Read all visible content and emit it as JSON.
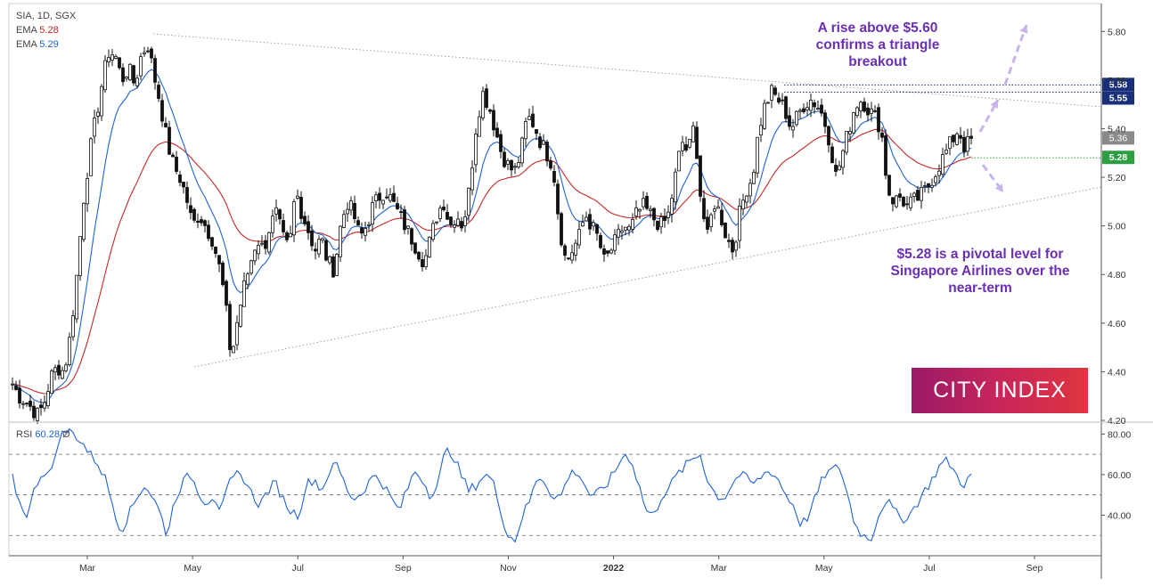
{
  "chart_data": {
    "type": "candlestick",
    "symbol_line": "SIA, 1D, SGX",
    "indicators": [
      {
        "label": "EMA",
        "value": "5.28",
        "color": "#c62828"
      },
      {
        "label": "EMA",
        "value": "5.29",
        "color": "#1e63d6"
      }
    ],
    "x_ticks": [
      "Mar",
      "May",
      "Jul",
      "Sep",
      "Nov",
      "2022",
      "Mar",
      "May",
      "Jul",
      "Sep"
    ],
    "y_ticks": [
      "5.80",
      "5.60",
      "5.40",
      "5.20",
      "5.00",
      "4.80",
      "4.60",
      "4.40",
      "4.20"
    ],
    "ylim": [
      4.2,
      5.9
    ],
    "price_path": [
      4.35,
      4.3,
      4.28,
      4.25,
      4.22,
      4.28,
      4.38,
      4.42,
      4.4,
      4.55,
      4.8,
      5.1,
      5.3,
      5.45,
      5.6,
      5.72,
      5.7,
      5.6,
      5.65,
      5.58,
      5.7,
      5.75,
      5.62,
      5.5,
      5.35,
      5.25,
      5.2,
      5.12,
      5.0,
      5.05,
      5.0,
      4.95,
      4.85,
      4.7,
      4.45,
      4.62,
      4.75,
      4.85,
      4.95,
      4.9,
      5.0,
      5.05,
      4.95,
      4.9,
      5.15,
      5.05,
      4.98,
      4.9,
      4.95,
      4.85,
      4.82,
      5.0,
      5.1,
      5.05,
      4.95,
      5.0,
      5.08,
      5.12,
      5.15,
      5.1,
      5.05,
      5.0,
      4.95,
      4.9,
      4.85,
      4.95,
      5.05,
      5.1,
      5.0,
      5.05,
      5.0,
      5.15,
      5.4,
      5.55,
      5.5,
      5.4,
      5.3,
      5.25,
      5.22,
      5.3,
      5.45,
      5.42,
      5.35,
      5.3,
      5.25,
      5.0,
      4.85,
      4.9,
      4.95,
      5.05,
      5.0,
      4.95,
      4.85,
      4.9,
      4.95,
      5.0,
      4.98,
      5.05,
      5.08,
      5.05,
      5.02,
      5.0,
      5.05,
      5.2,
      5.35,
      5.3,
      5.42,
      5.1,
      4.95,
      5.1,
      5.05,
      4.95,
      4.9,
      5.05,
      5.15,
      5.2,
      5.4,
      5.5,
      5.55,
      5.52,
      5.48,
      5.4,
      5.45,
      5.5,
      5.52,
      5.5,
      5.45,
      5.35,
      5.2,
      5.3,
      5.4,
      5.5,
      5.52,
      5.48,
      5.45,
      5.4,
      5.15,
      5.1,
      5.12,
      5.08,
      5.1,
      5.12,
      5.15,
      5.2,
      5.25,
      5.3,
      5.35,
      5.4,
      5.32,
      5.36
    ],
    "ema_slow": {
      "label": "EMA",
      "value": 5.28,
      "color": "#c62828"
    },
    "ema_fast": {
      "label": "EMA",
      "value": 5.29,
      "color": "#1e63d6"
    },
    "levels": [
      {
        "value": 5.58,
        "label": "5.58",
        "color": "#1a2f7a"
      },
      {
        "value": 5.55,
        "label": "5.55",
        "color": "#1a2f7a"
      },
      {
        "value": 5.28,
        "label": "5.28",
        "color": "#2e9e43"
      }
    ],
    "last_price": {
      "value": 5.36,
      "label": "5.36",
      "color": "#8a8a8a"
    },
    "rsi": {
      "label": "RSI",
      "value": "60.28",
      "extra": "Ø",
      "y_ticks": [
        "80.00",
        "60.00",
        "40.00"
      ],
      "levels": [
        70,
        50,
        30
      ],
      "ylim": [
        20,
        85
      ],
      "path": [
        58,
        45,
        40,
        55,
        62,
        60,
        78,
        82,
        80,
        76,
        70,
        66,
        58,
        45,
        32,
        40,
        48,
        55,
        50,
        42,
        30,
        48,
        56,
        60,
        52,
        46,
        50,
        42,
        55,
        60,
        58,
        50,
        45,
        52,
        56,
        48,
        42,
        40,
        55,
        58,
        52,
        62,
        65,
        55,
        48,
        50,
        56,
        60,
        55,
        48,
        42,
        52,
        62,
        58,
        50,
        55,
        72,
        70,
        60,
        52,
        55,
        60,
        58,
        45,
        30,
        28,
        40,
        48,
        60,
        56,
        48,
        50,
        60,
        62,
        55,
        48,
        52,
        56,
        62,
        70,
        68,
        55,
        42,
        40,
        50,
        54,
        60,
        64,
        68,
        70,
        56,
        50,
        48,
        55,
        60,
        58,
        55,
        60,
        62,
        58,
        50,
        45,
        35,
        40,
        50,
        60,
        62,
        64,
        50,
        35,
        30,
        28,
        40,
        48,
        42,
        38,
        40,
        46,
        52,
        58,
        65,
        67,
        60,
        55,
        60
      ]
    },
    "annotations": [
      {
        "lines": [
          "A rise above $5.60",
          "confirms a triangle",
          "breakout"
        ]
      },
      {
        "lines": [
          "$5.28 is a pivotal level for",
          "Singapore Airlines over the",
          "near-term"
        ]
      }
    ],
    "brand": "CITY INDEX",
    "colors": {
      "up": "#111111",
      "down": "#111111",
      "trend": "#9e9e9e",
      "arrow": "#c8b4ea",
      "note": "#6a2fb3"
    }
  }
}
